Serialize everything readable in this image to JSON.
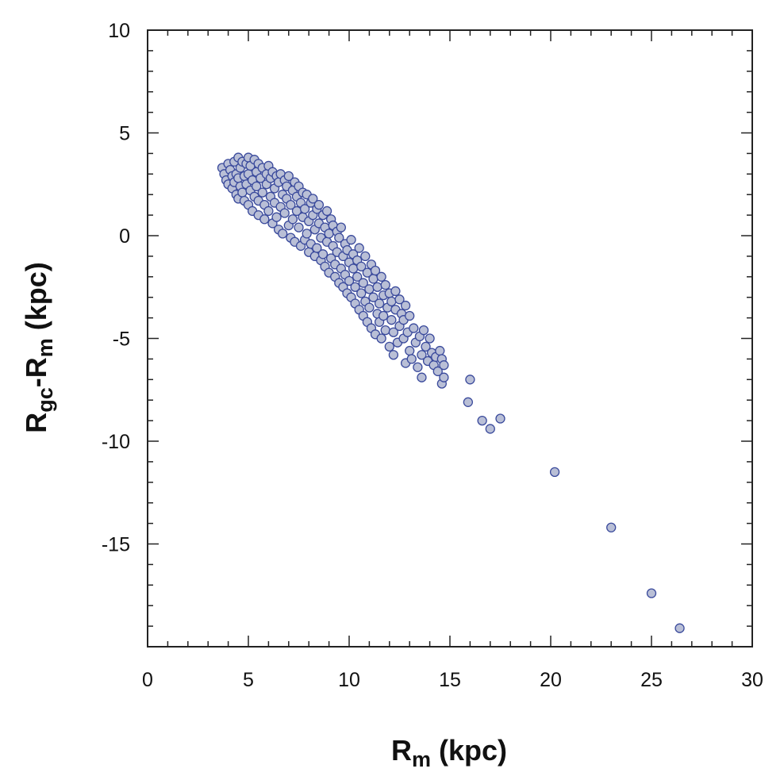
{
  "chart_data": {
    "type": "scatter",
    "title": "",
    "xlabel": {
      "main": "R",
      "sub": "m",
      "suffix": " (kpc)"
    },
    "ylabel": {
      "main": "R",
      "sub1": "gc",
      "mid": "-R",
      "sub2": "m",
      "suffix": " (kpc)"
    },
    "xlim": [
      0,
      30
    ],
    "ylim": [
      -20,
      10
    ],
    "x_ticks": [
      0,
      5,
      10,
      15,
      20,
      25,
      30
    ],
    "y_ticks": [
      -15,
      -10,
      -5,
      0,
      5,
      10
    ],
    "x_tick_labels": [
      "0",
      "5",
      "10",
      "15",
      "20",
      "25",
      "30"
    ],
    "y_tick_labels": [
      "-15",
      "-10",
      "-5",
      "0",
      "5",
      "10"
    ],
    "minor_tick_step": 1,
    "grid": false,
    "marker": {
      "fill": "#b9bfd6",
      "stroke": "#3a4a9c"
    },
    "series": [
      {
        "points": [
          [
            3.7,
            3.3
          ],
          [
            3.8,
            3.0
          ],
          [
            3.9,
            2.7
          ],
          [
            4.0,
            2.5
          ],
          [
            4.0,
            3.5
          ],
          [
            4.1,
            3.2
          ],
          [
            4.2,
            2.9
          ],
          [
            4.2,
            2.3
          ],
          [
            4.3,
            3.6
          ],
          [
            4.3,
            2.6
          ],
          [
            4.4,
            2.0
          ],
          [
            4.4,
            3.0
          ],
          [
            4.5,
            3.8
          ],
          [
            4.5,
            2.8
          ],
          [
            4.5,
            1.8
          ],
          [
            4.6,
            3.3
          ],
          [
            4.6,
            2.4
          ],
          [
            4.7,
            3.6
          ],
          [
            4.7,
            2.1
          ],
          [
            4.8,
            2.9
          ],
          [
            4.8,
            1.7
          ],
          [
            4.9,
            3.5
          ],
          [
            4.9,
            2.5
          ],
          [
            5.0,
            3.8
          ],
          [
            5.0,
            3.0
          ],
          [
            5.0,
            1.5
          ],
          [
            5.1,
            2.2
          ],
          [
            5.1,
            3.4
          ],
          [
            5.2,
            2.7
          ],
          [
            5.2,
            1.2
          ],
          [
            5.3,
            3.7
          ],
          [
            5.3,
            1.9
          ],
          [
            5.4,
            3.1
          ],
          [
            5.4,
            2.4
          ],
          [
            5.5,
            3.5
          ],
          [
            5.5,
            1.0
          ],
          [
            5.5,
            1.7
          ],
          [
            5.6,
            2.8
          ],
          [
            5.7,
            3.3
          ],
          [
            5.7,
            2.1
          ],
          [
            5.8,
            0.8
          ],
          [
            5.8,
            1.5
          ],
          [
            5.9,
            3.0
          ],
          [
            5.9,
            2.5
          ],
          [
            6.0,
            3.4
          ],
          [
            6.0,
            1.2
          ],
          [
            6.1,
            1.9
          ],
          [
            6.1,
            2.8
          ],
          [
            6.2,
            0.6
          ],
          [
            6.2,
            3.1
          ],
          [
            6.3,
            2.3
          ],
          [
            6.3,
            1.6
          ],
          [
            6.4,
            2.9
          ],
          [
            6.4,
            0.9
          ],
          [
            6.5,
            2.6
          ],
          [
            6.5,
            0.3
          ],
          [
            6.6,
            3.0
          ],
          [
            6.6,
            1.4
          ],
          [
            6.7,
            2.0
          ],
          [
            6.7,
            0.1
          ],
          [
            6.8,
            2.7
          ],
          [
            6.8,
            1.1
          ],
          [
            6.9,
            1.8
          ],
          [
            6.9,
            2.4
          ],
          [
            7.0,
            0.5
          ],
          [
            7.0,
            2.9
          ],
          [
            7.1,
            1.5
          ],
          [
            7.1,
            -0.1
          ],
          [
            7.2,
            2.2
          ],
          [
            7.2,
            0.8
          ],
          [
            7.3,
            2.6
          ],
          [
            7.3,
            -0.3
          ],
          [
            7.4,
            1.2
          ],
          [
            7.4,
            1.9
          ],
          [
            7.5,
            0.4
          ],
          [
            7.5,
            2.4
          ],
          [
            7.6,
            -0.5
          ],
          [
            7.6,
            1.6
          ],
          [
            7.7,
            0.9
          ],
          [
            7.7,
            2.1
          ],
          [
            7.8,
            -0.2
          ],
          [
            7.8,
            1.3
          ],
          [
            7.9,
            0.1
          ],
          [
            7.9,
            2.0
          ],
          [
            8.0,
            -0.8
          ],
          [
            8.0,
            0.7
          ],
          [
            8.1,
            1.6
          ],
          [
            8.1,
            -0.4
          ],
          [
            8.2,
            1.0
          ],
          [
            8.2,
            1.8
          ],
          [
            8.3,
            -1.0
          ],
          [
            8.3,
            0.3
          ],
          [
            8.4,
            1.3
          ],
          [
            8.4,
            -0.6
          ],
          [
            8.5,
            0.6
          ],
          [
            8.5,
            1.5
          ],
          [
            8.6,
            -1.2
          ],
          [
            8.6,
            -0.1
          ],
          [
            8.7,
            1.0
          ],
          [
            8.7,
            -0.9
          ],
          [
            8.8,
            0.4
          ],
          [
            8.8,
            -1.5
          ],
          [
            8.9,
            1.2
          ],
          [
            8.9,
            -0.3
          ],
          [
            9.0,
            -1.8
          ],
          [
            9.0,
            0.1
          ],
          [
            9.1,
            0.8
          ],
          [
            9.1,
            -1.1
          ],
          [
            9.2,
            -0.5
          ],
          [
            9.2,
            0.5
          ],
          [
            9.3,
            -2.0
          ],
          [
            9.3,
            -1.4
          ],
          [
            9.4,
            0.2
          ],
          [
            9.4,
            -0.8
          ],
          [
            9.5,
            -2.3
          ],
          [
            9.5,
            -0.1
          ],
          [
            9.6,
            -1.6
          ],
          [
            9.6,
            0.4
          ],
          [
            9.7,
            -1.0
          ],
          [
            9.7,
            -2.5
          ],
          [
            9.8,
            -0.4
          ],
          [
            9.8,
            -1.9
          ],
          [
            9.9,
            -2.8
          ],
          [
            9.9,
            -0.7
          ],
          [
            10.0,
            -1.3
          ],
          [
            10.0,
            -2.2
          ],
          [
            10.1,
            -0.2
          ],
          [
            10.1,
            -3.0
          ],
          [
            10.2,
            -1.6
          ],
          [
            10.2,
            -0.9
          ],
          [
            10.3,
            -2.5
          ],
          [
            10.3,
            -3.3
          ],
          [
            10.4,
            -1.2
          ],
          [
            10.4,
            -2.0
          ],
          [
            10.5,
            -3.6
          ],
          [
            10.5,
            -0.6
          ],
          [
            10.6,
            -2.8
          ],
          [
            10.6,
            -1.5
          ],
          [
            10.7,
            -3.9
          ],
          [
            10.7,
            -2.3
          ],
          [
            10.8,
            -1.0
          ],
          [
            10.8,
            -3.2
          ],
          [
            10.9,
            -4.2
          ],
          [
            10.9,
            -1.8
          ],
          [
            11.0,
            -2.6
          ],
          [
            11.0,
            -3.5
          ],
          [
            11.1,
            -1.4
          ],
          [
            11.1,
            -4.5
          ],
          [
            11.2,
            -2.1
          ],
          [
            11.2,
            -3.0
          ],
          [
            11.3,
            -4.8
          ],
          [
            11.3,
            -1.7
          ],
          [
            11.4,
            -3.8
          ],
          [
            11.4,
            -2.5
          ],
          [
            11.5,
            -4.2
          ],
          [
            11.5,
            -3.3
          ],
          [
            11.6,
            -2.0
          ],
          [
            11.6,
            -5.0
          ],
          [
            11.7,
            -2.9
          ],
          [
            11.7,
            -3.9
          ],
          [
            11.8,
            -4.6
          ],
          [
            11.8,
            -2.4
          ],
          [
            11.9,
            -3.5
          ],
          [
            12.0,
            -5.4
          ],
          [
            12.0,
            -2.8
          ],
          [
            12.1,
            -4.1
          ],
          [
            12.1,
            -3.2
          ],
          [
            12.2,
            -5.8
          ],
          [
            12.2,
            -4.7
          ],
          [
            12.3,
            -3.6
          ],
          [
            12.3,
            -2.7
          ],
          [
            12.4,
            -5.2
          ],
          [
            12.5,
            -4.4
          ],
          [
            12.5,
            -3.1
          ],
          [
            12.6,
            -3.8
          ],
          [
            12.7,
            -5.0
          ],
          [
            12.7,
            -4.1
          ],
          [
            12.8,
            -6.2
          ],
          [
            12.8,
            -3.4
          ],
          [
            12.9,
            -4.7
          ],
          [
            13.0,
            -5.6
          ],
          [
            13.0,
            -3.9
          ],
          [
            13.1,
            -6.0
          ],
          [
            13.2,
            -4.5
          ],
          [
            13.3,
            -5.2
          ],
          [
            13.4,
            -6.4
          ],
          [
            13.5,
            -4.9
          ],
          [
            13.6,
            -5.8
          ],
          [
            13.6,
            -6.9
          ],
          [
            13.7,
            -4.6
          ],
          [
            13.8,
            -5.4
          ],
          [
            13.9,
            -6.1
          ],
          [
            14.0,
            -5.0
          ],
          [
            14.1,
            -5.7
          ],
          [
            14.2,
            -6.3
          ],
          [
            14.3,
            -5.9
          ],
          [
            14.4,
            -6.6
          ],
          [
            14.5,
            -5.6
          ],
          [
            14.6,
            -7.2
          ],
          [
            14.6,
            -6.0
          ],
          [
            14.7,
            -6.9
          ],
          [
            14.7,
            -6.3
          ],
          [
            16.0,
            -7.0
          ],
          [
            15.9,
            -8.1
          ],
          [
            16.6,
            -9.0
          ],
          [
            17.0,
            -9.4
          ],
          [
            17.5,
            -8.9
          ],
          [
            20.2,
            -11.5
          ],
          [
            23.0,
            -14.2
          ],
          [
            25.0,
            -17.4
          ],
          [
            26.4,
            -19.1
          ]
        ]
      }
    ]
  }
}
